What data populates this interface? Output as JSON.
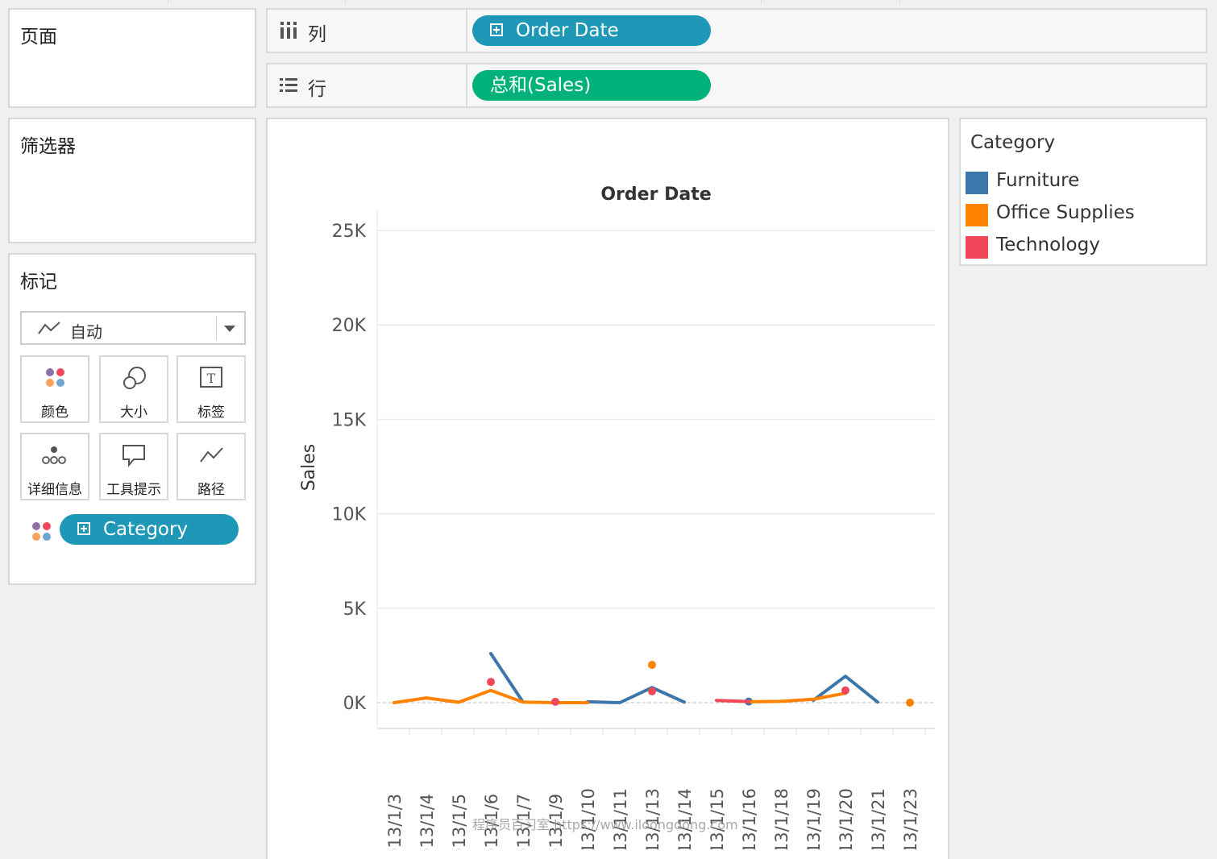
{
  "panels": {
    "pages_title": "页面",
    "filters_title": "筛选器",
    "marks_title": "标记"
  },
  "shelves": {
    "columns_label": "列",
    "rows_label": "行",
    "columns_pill": "Order Date",
    "rows_pill": "总和(Sales)"
  },
  "marks": {
    "type_value": "自动",
    "buttons": [
      "颜色",
      "大小",
      "标签",
      "详细信息",
      "工具提示",
      "路径"
    ],
    "color_field_pill": "Category"
  },
  "legend": {
    "title": "Category",
    "items": [
      {
        "label": "Furniture",
        "color": "#3d76aa"
      },
      {
        "label": "Office Supplies",
        "color": "#ff8300"
      },
      {
        "label": "Technology",
        "color": "#f0475a"
      }
    ]
  },
  "colors": {
    "pill_blue": "#1e98b6",
    "pill_green": "#00b27a"
  },
  "chart_data": {
    "type": "line",
    "title": "Order Date",
    "xlabel": "",
    "ylabel": "Sales",
    "ylim": [
      0,
      25000
    ],
    "yticks": [
      "0K",
      "5K",
      "10K",
      "15K",
      "20K",
      "25K"
    ],
    "categories": [
      "2013/1/3",
      "2013/1/4",
      "2013/1/5",
      "2013/1/6",
      "2013/1/7",
      "2013/1/9",
      "2013/1/10",
      "2013/1/11",
      "2013/1/13",
      "2013/1/14",
      "2013/1/15",
      "2013/1/16",
      "2013/1/18",
      "2013/1/19",
      "2013/1/20",
      "2013/1/21",
      "2013/1/23"
    ],
    "series": [
      {
        "name": "Furniture",
        "color": "#3d76aa",
        "values": [
          null,
          null,
          null,
          2600,
          30,
          null,
          50,
          0,
          800,
          30,
          null,
          60,
          null,
          120,
          1400,
          30,
          null
        ]
      },
      {
        "name": "Office Supplies",
        "color": "#ff8300",
        "values": [
          0,
          250,
          20,
          650,
          30,
          0,
          0,
          null,
          2000,
          null,
          null,
          50,
          70,
          180,
          500,
          null,
          0
        ]
      },
      {
        "name": "Technology",
        "color": "#f0475a",
        "values": [
          null,
          null,
          null,
          1100,
          null,
          50,
          null,
          null,
          600,
          null,
          120,
          60,
          null,
          null,
          650,
          null,
          null
        ]
      }
    ]
  },
  "watermark": "程序员百习室 https://www.iloongdong.com"
}
